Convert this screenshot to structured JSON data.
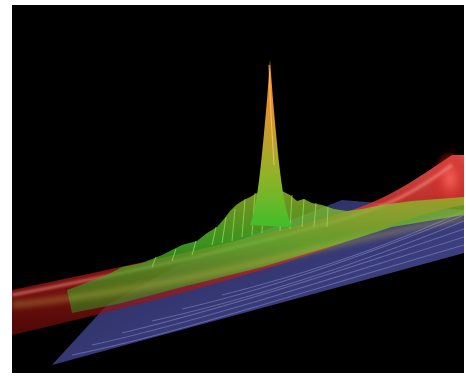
{
  "image": {
    "description_role": "3d-surface-render",
    "colors": {
      "background": "#000000",
      "frame": "#ffffff",
      "tube": "#e8332f",
      "plane": "#5a5ec8",
      "surface_low": "#3fbf2a",
      "surface_mid": "#c9a62a",
      "peak": "#e07a2e"
    }
  }
}
